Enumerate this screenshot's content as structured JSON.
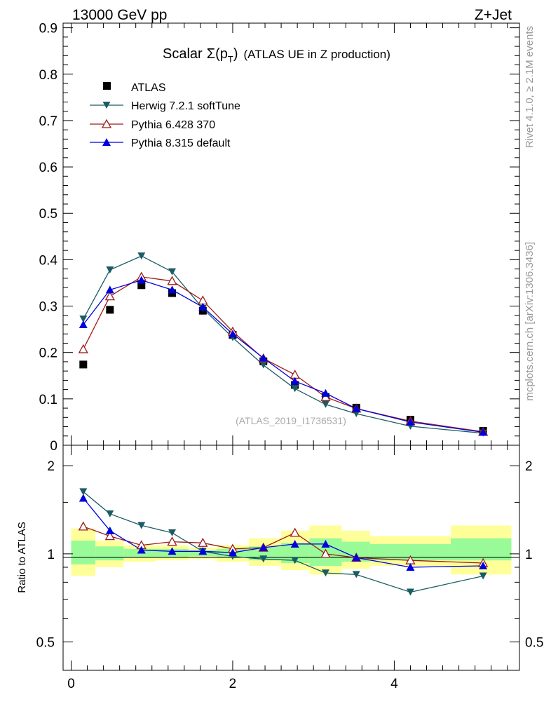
{
  "header": {
    "left": "13000 GeV pp",
    "right": "Z+Jet"
  },
  "side_labels": {
    "rivet": "Rivet 4.1.0, ≥ 2.1M events",
    "mcplots": "mcplots.cern.ch [arXiv:1306.3436]"
  },
  "watermark": "(ATLAS_2019_I1736531)",
  "colors": {
    "atlas": "#000000",
    "herwig": "#1a5c63",
    "pythia6": "#9c1b1b",
    "pythia8": "#0000dd",
    "band_inner": "#98fb98",
    "band_outer": "#ffff99"
  },
  "chart_data": [
    {
      "type": "line",
      "title_prefix": "Scalar",
      "title_sigma": "Σ(p",
      "title_sub": "T",
      "title_close": ")",
      "title_suffix": "(ATLAS UE in Z production)",
      "xlabel": "",
      "ylabel": "",
      "xlim": [
        -0.1,
        5.55
      ],
      "ylim": [
        0,
        0.91
      ],
      "yticks": [
        0,
        0.1,
        0.2,
        0.3,
        0.4,
        0.5,
        0.6,
        0.7,
        0.8,
        0.9
      ],
      "ytick_labels": [
        "0",
        "0.1",
        "0.2",
        "0.3",
        "0.4",
        "0.5",
        "0.6",
        "0.7",
        "0.8",
        "0.9"
      ],
      "legend_position": "top-left",
      "series": [
        {
          "name": "ATLAS",
          "marker": "square",
          "x": [
            0.15,
            0.48,
            0.87,
            1.25,
            1.63,
            2.0,
            2.38,
            2.77,
            3.15,
            3.53,
            4.2,
            5.1
          ],
          "values": [
            0.174,
            0.292,
            0.345,
            0.328,
            0.29,
            0.238,
            0.181,
            0.13,
            0.104,
            0.081,
            0.055,
            0.031
          ]
        },
        {
          "name": "Herwig 7.2.1 softTune",
          "marker": "triangle-down",
          "x": [
            0.15,
            0.48,
            0.87,
            1.25,
            1.63,
            2.0,
            2.38,
            2.77,
            3.15,
            3.53,
            4.2,
            5.1
          ],
          "values": [
            0.272,
            0.378,
            0.408,
            0.374,
            0.295,
            0.232,
            0.173,
            0.122,
            0.088,
            0.068,
            0.041,
            0.026
          ]
        },
        {
          "name": "Pythia 6.428 370",
          "marker": "triangle-up-open",
          "x": [
            0.15,
            0.48,
            0.87,
            1.25,
            1.63,
            2.0,
            2.38,
            2.77,
            3.15,
            3.53,
            4.2,
            5.1
          ],
          "values": [
            0.207,
            0.321,
            0.363,
            0.354,
            0.312,
            0.245,
            0.187,
            0.152,
            0.104,
            0.079,
            0.052,
            0.029
          ]
        },
        {
          "name": "Pythia 8.315 default",
          "marker": "triangle-up",
          "x": [
            0.15,
            0.48,
            0.87,
            1.25,
            1.63,
            2.0,
            2.38,
            2.77,
            3.15,
            3.53,
            4.2,
            5.1
          ],
          "values": [
            0.26,
            0.335,
            0.356,
            0.335,
            0.298,
            0.24,
            0.188,
            0.138,
            0.112,
            0.079,
            0.05,
            0.028
          ]
        }
      ]
    },
    {
      "type": "line",
      "title": "",
      "xlabel": "",
      "ylabel": "Ratio to ATLAS",
      "xlim": [
        -0.1,
        5.55
      ],
      "ylim": [
        0.4,
        2.35
      ],
      "yscale": "log",
      "ytick_labels": [
        {
          "value": 0.5,
          "label": "0.5"
        },
        {
          "value": 1,
          "label": "1"
        },
        {
          "value": 2,
          "label": "2"
        }
      ],
      "xticks": [
        0,
        2,
        4
      ],
      "xtick_labels": [
        "0",
        "2",
        "4"
      ],
      "bands": {
        "edges": [
          0,
          0.3,
          0.65,
          1.05,
          1.45,
          1.8,
          2.2,
          2.6,
          2.95,
          3.35,
          3.7,
          4.7,
          5.45
        ],
        "inner_low": [
          0.92,
          0.95,
          0.97,
          0.97,
          0.98,
          0.97,
          0.95,
          0.93,
          0.91,
          0.94,
          0.95,
          0.95
        ],
        "inner_high": [
          1.11,
          1.06,
          1.04,
          1.04,
          1.03,
          1.04,
          1.06,
          1.09,
          1.13,
          1.1,
          1.08,
          1.13
        ],
        "outer_low": [
          0.84,
          0.9,
          0.94,
          0.95,
          0.96,
          0.94,
          0.91,
          0.88,
          0.85,
          0.89,
          0.91,
          0.85
        ],
        "outer_high": [
          1.22,
          1.11,
          1.07,
          1.07,
          1.05,
          1.07,
          1.13,
          1.2,
          1.25,
          1.2,
          1.15,
          1.25
        ]
      },
      "series": [
        {
          "name": "Herwig 7.2.1 softTune",
          "marker": "triangle-down",
          "x": [
            0.15,
            0.48,
            0.87,
            1.25,
            1.63,
            2.0,
            2.38,
            2.77,
            3.15,
            3.53,
            4.2,
            5.1
          ],
          "values": [
            1.63,
            1.37,
            1.25,
            1.18,
            1.02,
            0.98,
            0.96,
            0.95,
            0.86,
            0.85,
            0.74,
            0.84
          ]
        },
        {
          "name": "Pythia 6.428 370",
          "marker": "triangle-up-open",
          "x": [
            0.15,
            0.48,
            0.87,
            1.25,
            1.63,
            2.0,
            2.38,
            2.77,
            3.15,
            3.53,
            4.2,
            5.1
          ],
          "values": [
            1.24,
            1.15,
            1.07,
            1.1,
            1.09,
            1.04,
            1.05,
            1.18,
            1.0,
            0.97,
            0.95,
            0.93
          ]
        },
        {
          "name": "Pythia 8.315 default",
          "marker": "triangle-up",
          "x": [
            0.15,
            0.48,
            0.87,
            1.25,
            1.63,
            2.0,
            2.38,
            2.77,
            3.15,
            3.53,
            4.2,
            5.1
          ],
          "values": [
            1.55,
            1.2,
            1.03,
            1.02,
            1.02,
            1.01,
            1.05,
            1.08,
            1.08,
            0.97,
            0.9,
            0.91
          ]
        }
      ]
    }
  ]
}
